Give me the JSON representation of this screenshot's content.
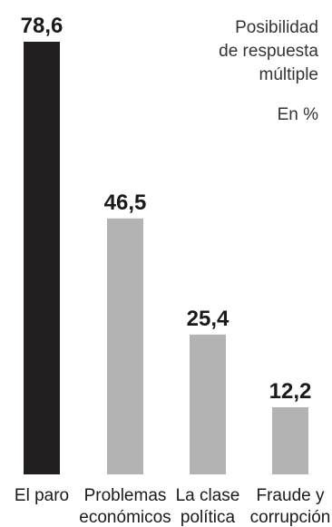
{
  "chart_data": {
    "type": "bar",
    "categories": [
      [
        "El paro"
      ],
      [
        "Problemas",
        "económicos"
      ],
      [
        "La clase",
        "política"
      ],
      [
        "Fraude y",
        "corrupción"
      ]
    ],
    "values": [
      78.6,
      46.5,
      25.4,
      12.2
    ],
    "value_labels": [
      "78,6",
      "46,5",
      "25,4",
      "12,2"
    ],
    "ylim": [
      0,
      78.6
    ],
    "grid": false,
    "colors": {
      "highlight": "#231f20",
      "default": "#b3b3b3"
    },
    "notes": [
      "Posibilidad",
      "de respuesta",
      "múltiple",
      "En %"
    ]
  }
}
